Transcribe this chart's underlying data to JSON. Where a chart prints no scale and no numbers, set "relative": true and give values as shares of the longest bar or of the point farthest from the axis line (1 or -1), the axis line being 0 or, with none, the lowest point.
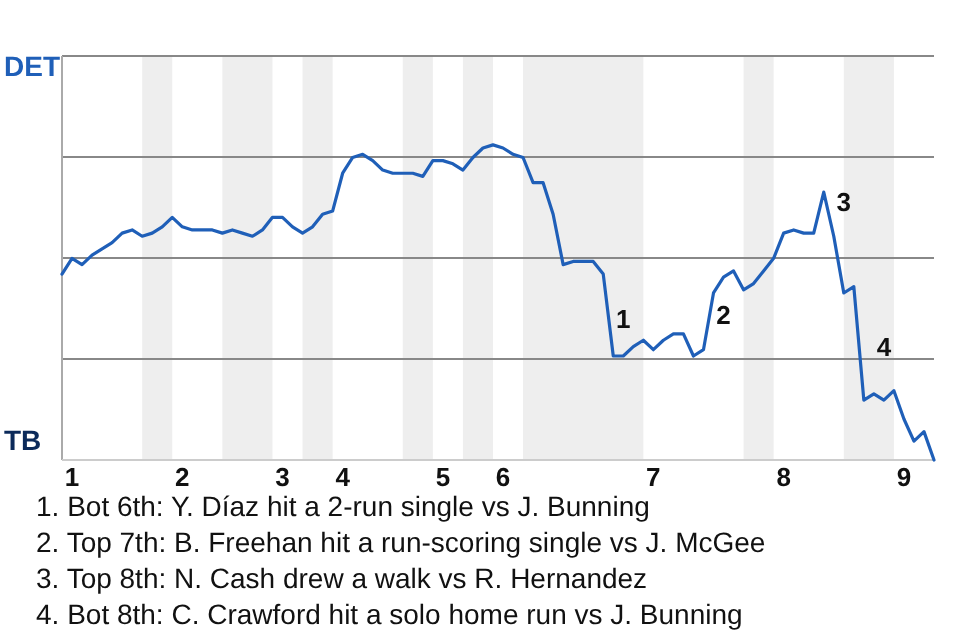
{
  "chart_data": {
    "type": "line",
    "relative": true,
    "categories": [
      null,
      "1",
      null,
      null,
      null,
      null,
      null,
      null,
      null,
      null,
      null,
      null,
      "2",
      null,
      null,
      null,
      null,
      null,
      null,
      null,
      null,
      null,
      "3",
      null,
      null,
      null,
      null,
      null,
      "4",
      null,
      null,
      null,
      null,
      null,
      null,
      null,
      null,
      null,
      "5",
      null,
      null,
      null,
      null,
      null,
      "6",
      null,
      null,
      null,
      null,
      null,
      null,
      null,
      null,
      null,
      null,
      null,
      null,
      null,
      null,
      "7",
      null,
      null,
      null,
      null,
      null,
      null,
      null,
      null,
      null,
      null,
      null,
      null,
      "8",
      null,
      null,
      null,
      null,
      null,
      null,
      null,
      null,
      null,
      null,
      null,
      "9",
      null,
      null,
      null
    ],
    "grid": "y",
    "marker": "none",
    "line_style": "solid",
    "series": [
      {
        "color": "#1f5fb8",
        "values": [
          0.59,
          0.64,
          0.62,
          0.65,
          0.67,
          0.69,
          0.72,
          0.73,
          0.71,
          0.72,
          0.74,
          0.77,
          0.74,
          0.73,
          0.73,
          0.73,
          0.72,
          0.73,
          0.72,
          0.71,
          0.73,
          0.77,
          0.77,
          0.74,
          0.72,
          0.74,
          0.78,
          0.79,
          0.91,
          0.96,
          0.97,
          0.95,
          0.92,
          0.91,
          0.91,
          0.91,
          0.9,
          0.95,
          0.95,
          0.94,
          0.92,
          0.96,
          0.99,
          1,
          0.99,
          0.97,
          0.96,
          0.88,
          0.88,
          0.78,
          0.62,
          0.63,
          0.63,
          0.63,
          0.59,
          0.33,
          0.33,
          0.36,
          0.38,
          0.35,
          0.38,
          0.4,
          0.4,
          0.33,
          0.35,
          0.53,
          0.58,
          0.6,
          0.54,
          0.56,
          0.6,
          0.64,
          0.72,
          0.73,
          0.72,
          0.72,
          0.85,
          0.71,
          0.53,
          0.55,
          0.19,
          0.21,
          0.19,
          0.22,
          0.13,
          0.06,
          0.09,
          0
        ]
      }
    ],
    "annotations": [
      "DET",
      "TB",
      "1",
      "2",
      "3",
      "4",
      "1. Bot 6th: Y. Díaz hit a 2-run single vs J. Bunning",
      "2. Top 7th: B. Freehan hit a run-scoring single vs J. McGee",
      "3. Top 8th: N. Cash drew a walk vs R. Hernandez",
      "4. Bot 8th: C. Crawford hit a solo home run vs J. Bunning"
    ]
  }
}
